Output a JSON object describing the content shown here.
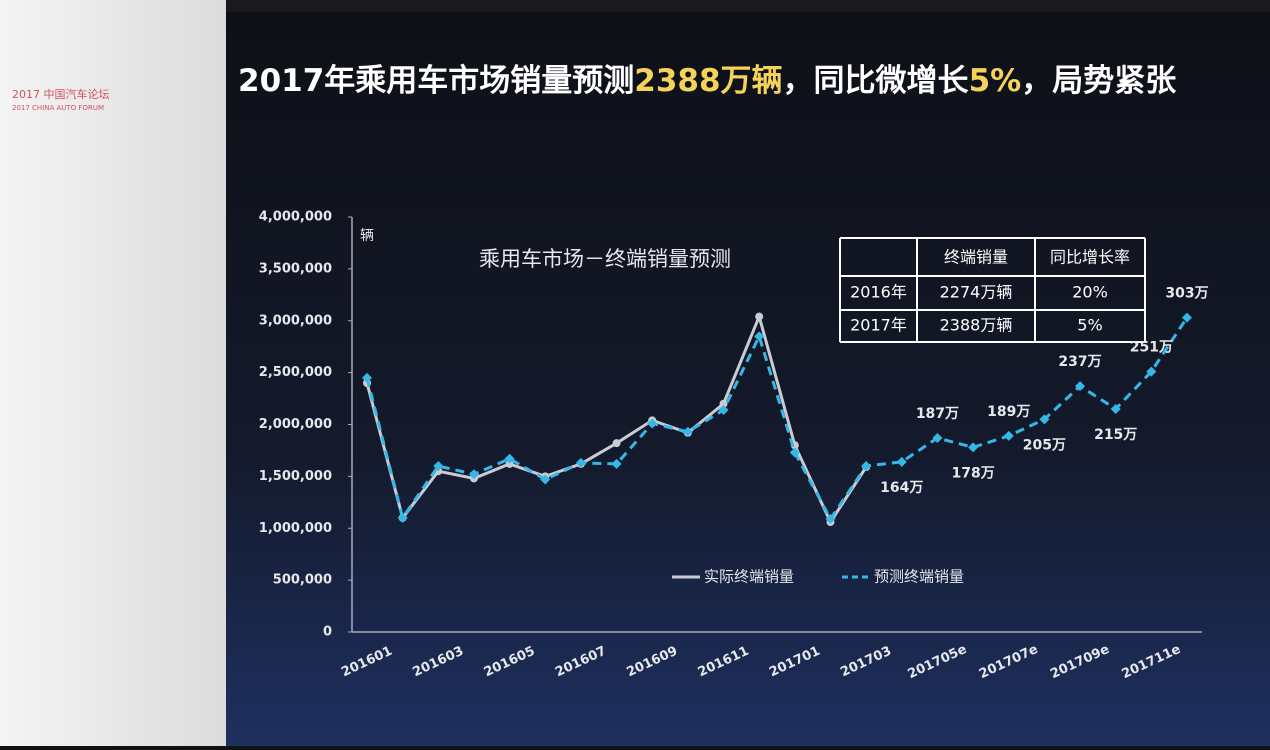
{
  "slide": {
    "title_parts": [
      {
        "text": "2017年乘用车市场销量预测",
        "color": "#ffffff"
      },
      {
        "text": "2388万辆",
        "color": "#f5d35a"
      },
      {
        "text": "，同比微增长",
        "color": "#ffffff"
      },
      {
        "text": "5%",
        "color": "#f5d35a"
      },
      {
        "text": "，局势紧张",
        "color": "#ffffff"
      }
    ],
    "logo": [
      "2017 中国汽车论坛",
      "2017 CHINA AUTO FORUM"
    ]
  },
  "table": {
    "header": [
      "终端销量",
      "同比增长率"
    ],
    "rows": [
      [
        "2016年",
        "2274万辆",
        "20%"
      ],
      [
        "2017年",
        "2388万辆",
        "5%"
      ]
    ]
  },
  "chart_data": {
    "type": "line",
    "title": "乘用车市场－终端销量预测",
    "y_label": "辆",
    "categories": [
      "201601",
      null,
      "201603",
      null,
      "201605",
      null,
      "201607",
      null,
      "201609",
      null,
      "201611",
      null,
      "201701",
      null,
      "201703",
      null,
      "201705e",
      null,
      "201707e",
      null,
      "201709e",
      null,
      "201711e",
      null
    ],
    "series": [
      {
        "name": "实际终端销量",
        "color": "#c9ccd2",
        "dashed": false,
        "marker": "circle",
        "values": [
          2400000,
          1100000,
          1550000,
          1480000,
          1620000,
          1500000,
          1620000,
          1820000,
          2040000,
          1920000,
          2200000,
          3040000,
          1800000,
          1060000,
          1590000,
          null,
          null,
          null,
          null,
          null,
          null,
          null,
          null,
          null
        ]
      },
      {
        "name": "预测终端销量",
        "color": "#35b8e8",
        "dashed": true,
        "marker": "diamond",
        "values": [
          2450000,
          1100000,
          1600000,
          1520000,
          1670000,
          1470000,
          1630000,
          1620000,
          2010000,
          1930000,
          2140000,
          2850000,
          1730000,
          1090000,
          1600000,
          1640000,
          1870000,
          1780000,
          1890000,
          2050000,
          2370000,
          2150000,
          2510000,
          3030000
        ],
        "value_labels": [
          null,
          null,
          null,
          null,
          null,
          null,
          null,
          null,
          null,
          null,
          null,
          null,
          null,
          null,
          null,
          "164万",
          "187万",
          "178万",
          "189万",
          "205万",
          "237万",
          "215万",
          "251万",
          "303万"
        ]
      }
    ],
    "ylim": [
      0,
      4000000
    ],
    "yticks": [
      0,
      {
        "value": 500000,
        "label": "500,000"
      },
      {
        "value": 1000000,
        "label": "1,000,000"
      },
      {
        "value": 1500000,
        "label": "1,500,000"
      },
      {
        "value": 2000000,
        "label": "2,000,000"
      },
      {
        "value": 2500000,
        "label": "2,500,000"
      },
      {
        "value": 3000000,
        "label": "3,000,000"
      },
      {
        "value": 3500000,
        "label": "3,500,000"
      },
      {
        "value": 4000000,
        "label": "4,000,000"
      }
    ],
    "grid": false
  }
}
